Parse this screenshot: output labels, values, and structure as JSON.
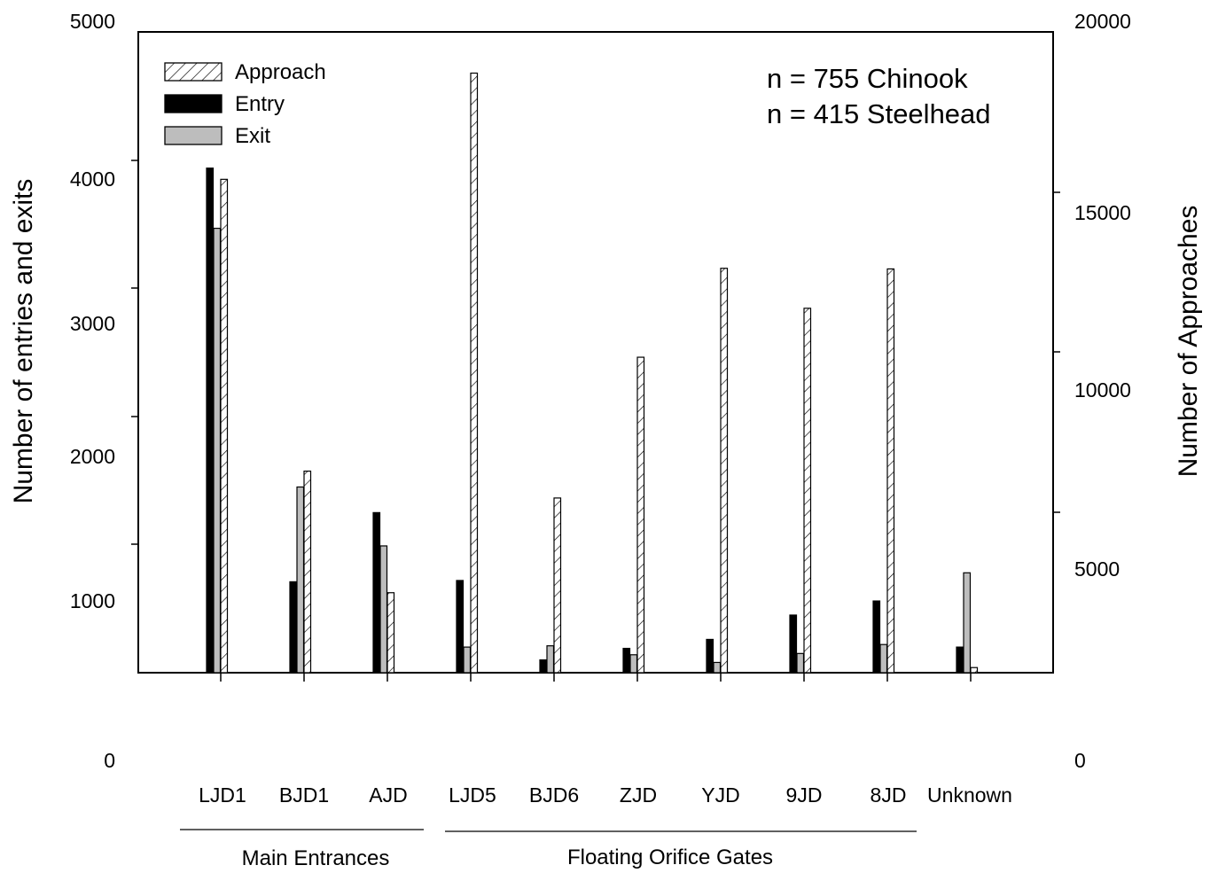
{
  "chart_data": {
    "type": "bar",
    "categories": [
      "LJD1",
      "BJD1",
      "AJD",
      "LJD5",
      "BJD6",
      "ZJD",
      "YJD",
      "9JD",
      "8JD",
      "Unknown"
    ],
    "series": [
      {
        "name": "Entry",
        "axis": "left",
        "values": [
          3940,
          710,
          1250,
          720,
          100,
          190,
          260,
          450,
          560,
          200
        ]
      },
      {
        "name": "Exit",
        "axis": "left",
        "values": [
          3470,
          1450,
          990,
          200,
          210,
          140,
          80,
          150,
          220,
          780
        ]
      },
      {
        "name": "Approach",
        "axis": "right",
        "values": [
          15420,
          6300,
          2500,
          18740,
          5460,
          9860,
          12640,
          11390,
          12620,
          160
        ]
      }
    ],
    "ylabel": "Number of entries and exits",
    "y2label": "Number of Approaches",
    "ylim": [
      0,
      5000
    ],
    "y2lim": [
      0,
      20000
    ],
    "yticks": [
      "0",
      "1000",
      "2000",
      "3000",
      "4000",
      "5000"
    ],
    "y2ticks": [
      "0",
      "5000",
      "10000",
      "15000",
      "20000"
    ],
    "legend": {
      "position": "top-left",
      "entries": [
        "Approach",
        "Entry",
        "Exit"
      ]
    },
    "colors": {
      "Entry": "#000000",
      "Exit": "#bdbdbd",
      "Approach": "hatched"
    },
    "annotations": [
      "n = 755 Chinook",
      "n = 415 Steelhead"
    ],
    "groups": [
      {
        "label": "Main Entrances"
      },
      {
        "label": "Floating Orifice Gates"
      }
    ]
  }
}
